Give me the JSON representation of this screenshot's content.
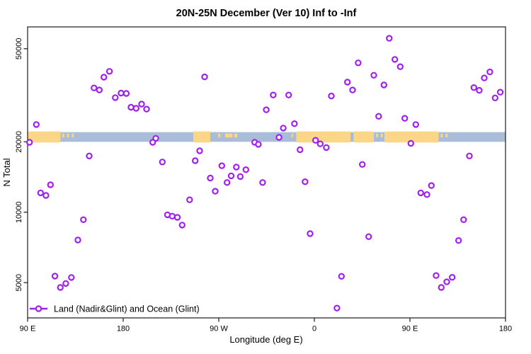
{
  "chart_data": {
    "type": "scatter",
    "title": "20N-25N December (Ver 10)   Inf to -Inf",
    "xlabel": "Longitude (deg E)",
    "ylabel": "N Total",
    "x_axis": {
      "range": [
        90,
        540
      ],
      "ticks": [
        {
          "v": 90,
          "label": "90 E"
        },
        {
          "v": 180,
          "label": "180"
        },
        {
          "v": 270,
          "label": "90 W"
        },
        {
          "v": 360,
          "label": "0"
        },
        {
          "v": 450,
          "label": "90 E"
        },
        {
          "v": 540,
          "label": "180"
        }
      ]
    },
    "y_axis": {
      "scale": "log",
      "range": [
        3500,
        62000
      ],
      "ticks": [
        {
          "v": 5000,
          "label": "5000"
        },
        {
          "v": 10000,
          "label": "10000"
        },
        {
          "v": 20000,
          "label": "20000"
        },
        {
          "v": 50000,
          "label": "50000"
        }
      ]
    },
    "legend": {
      "label": "Land (Nadir&Glint) and Ocean (Glint)",
      "position": "bottom-left"
    },
    "marker": {
      "shape": "open-circle",
      "color": "#A020F0"
    },
    "grid": false,
    "map_band": {
      "description": "world-map latitude strip 20N-25N drawn across plot",
      "n_range": [
        20000,
        22000
      ],
      "ocean_color": "#A9BDD8",
      "land_color": "#FBD687",
      "land_main": [
        [
          90,
          121
        ],
        [
          246,
          262
        ],
        [
          343,
          394
        ],
        [
          397,
          416
        ],
        [
          426,
          477
        ]
      ],
      "land_islands": [
        [
          122.5,
          124.5
        ],
        [
          127,
          129
        ],
        [
          131.5,
          133.5
        ],
        [
          269.5,
          271.5
        ],
        [
          276,
          283
        ],
        [
          284.5,
          287.5
        ],
        [
          338.5,
          340
        ],
        [
          418,
          420
        ],
        [
          422.5,
          424.5
        ],
        [
          479,
          481
        ],
        [
          483.5,
          485.5
        ]
      ]
    },
    "points": [
      [
        167.1,
        40000
      ],
      [
        161.8,
        37800
      ],
      [
        152.5,
        34000
      ],
      [
        157.5,
        33300
      ],
      [
        172.5,
        30900
      ],
      [
        178.0,
        32300
      ],
      [
        182.9,
        32200
      ],
      [
        187.3,
        28100
      ],
      [
        192.2,
        27800
      ],
      [
        197.3,
        29000
      ],
      [
        202.0,
        27600
      ],
      [
        256.7,
        37900
      ],
      [
        98.2,
        23700
      ],
      [
        430.5,
        55400
      ],
      [
        435.8,
        45000
      ],
      [
        440.9,
        41900
      ],
      [
        401.3,
        43500
      ],
      [
        416.0,
        38500
      ],
      [
        391.1,
        36000
      ],
      [
        396.0,
        33300
      ],
      [
        425.5,
        35000
      ],
      [
        376.0,
        31400
      ],
      [
        321.3,
        31700
      ],
      [
        335.8,
        31700
      ],
      [
        314.7,
        27400
      ],
      [
        330.7,
        22900
      ],
      [
        341.3,
        23900
      ],
      [
        420.5,
        25700
      ],
      [
        445.1,
        25200
      ],
      [
        455.5,
        23700
      ],
      [
        525.3,
        39800
      ],
      [
        520.0,
        37500
      ],
      [
        510.2,
        34100
      ],
      [
        515.3,
        33200
      ],
      [
        535.1,
        32600
      ],
      [
        530.2,
        30800
      ],
      [
        91.8,
        19900
      ],
      [
        148.0,
        17400
      ],
      [
        210.7,
        20700
      ],
      [
        207.8,
        19900
      ],
      [
        216.9,
        16400
      ],
      [
        247.8,
        16600
      ],
      [
        252.0,
        18300
      ],
      [
        272.9,
        15800
      ],
      [
        286.5,
        15600
      ],
      [
        295.5,
        15200
      ],
      [
        281.7,
        14300
      ],
      [
        290.3,
        14200
      ],
      [
        262.0,
        14000
      ],
      [
        277.8,
        13400
      ],
      [
        311.3,
        13400
      ],
      [
        266.7,
        12300
      ],
      [
        111.5,
        13100
      ],
      [
        102.2,
        12100
      ],
      [
        107.3,
        11800
      ],
      [
        242.5,
        11300
      ],
      [
        221.7,
        9750
      ],
      [
        226.1,
        9620
      ],
      [
        231.0,
        9510
      ],
      [
        235.5,
        8810
      ],
      [
        142.5,
        9290
      ],
      [
        137.3,
        7610
      ],
      [
        303.8,
        19900
      ],
      [
        307.3,
        19500
      ],
      [
        326.7,
        20900
      ],
      [
        361.1,
        20300
      ],
      [
        365.5,
        19600
      ],
      [
        371.3,
        18900
      ],
      [
        346.5,
        18500
      ],
      [
        450.9,
        19700
      ],
      [
        506.0,
        17400
      ],
      [
        405.1,
        16000
      ],
      [
        351.3,
        13500
      ],
      [
        460.2,
        12100
      ],
      [
        466.0,
        11900
      ],
      [
        470.2,
        13000
      ],
      [
        500.5,
        9290
      ],
      [
        356.0,
        8100
      ],
      [
        411.1,
        7860
      ],
      [
        495.8,
        7570
      ],
      [
        115.7,
        5330
      ],
      [
        120.8,
        4770
      ],
      [
        125.9,
        4960
      ],
      [
        131.2,
        5260
      ],
      [
        385.5,
        5320
      ],
      [
        474.7,
        5360
      ],
      [
        479.5,
        4770
      ],
      [
        484.7,
        5040
      ],
      [
        489.8,
        5270
      ],
      [
        381.3,
        3890
      ]
    ]
  }
}
